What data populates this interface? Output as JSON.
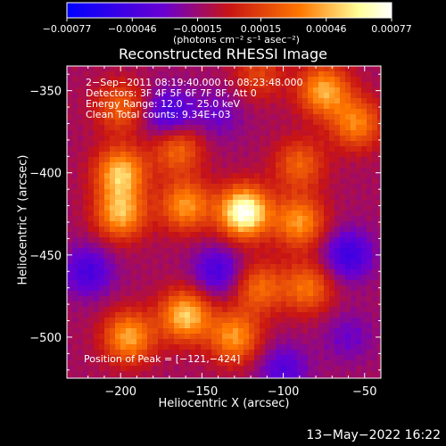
{
  "chart_data": {
    "type": "heatmap",
    "title": "Reconstructed RHESSI Image",
    "xlabel": "Heliocentric X (arcsec)",
    "ylabel": "Heliocentric Y (arcsec)",
    "xlim": [
      -233,
      -40
    ],
    "ylim": [
      -525,
      -335
    ],
    "xticks": [
      -200,
      -150,
      -100,
      -50
    ],
    "yticks": [
      -350,
      -400,
      -450,
      -500
    ],
    "xtick_labels": [
      "−200",
      "−150",
      "−100",
      "−50"
    ],
    "ytick_labels": [
      "−350",
      "−400",
      "−450",
      "−500"
    ],
    "colorbar": {
      "range": [
        -0.00077,
        0.00077
      ],
      "ticks": [
        -0.00077,
        -0.00046,
        -0.00015,
        0.00015,
        0.00046,
        0.00077
      ],
      "tick_labels": [
        "−0.00077",
        "−0.00046",
        "−0.00015",
        "0.00015",
        "0.00046",
        "0.00077"
      ],
      "units": "(photons cm⁻² s⁻¹ asec⁻²)",
      "colors": [
        "#0000ff",
        "#6a00d0",
        "#c81414",
        "#ff7800",
        "#ffff9a",
        "#ffffff"
      ]
    },
    "sources": [
      {
        "x": -124,
        "y": -424,
        "value": 0.00077
      },
      {
        "x": -200,
        "y": -400,
        "value": 0.0005
      },
      {
        "x": -200,
        "y": -425,
        "value": 0.00046
      },
      {
        "x": -160,
        "y": -420,
        "value": 0.0004
      },
      {
        "x": -165,
        "y": -385,
        "value": 0.0003
      },
      {
        "x": -195,
        "y": -500,
        "value": 0.00044
      },
      {
        "x": -160,
        "y": -487,
        "value": 0.00052
      },
      {
        "x": -130,
        "y": -500,
        "value": 0.0004
      },
      {
        "x": -115,
        "y": -470,
        "value": 0.00028
      },
      {
        "x": -200,
        "y": -360,
        "value": 0.00025
      },
      {
        "x": -75,
        "y": -350,
        "value": 0.00045
      },
      {
        "x": -55,
        "y": -370,
        "value": 0.00035
      },
      {
        "x": -90,
        "y": -395,
        "value": 0.00025
      },
      {
        "x": -90,
        "y": -430,
        "value": 0.0004
      },
      {
        "x": -85,
        "y": -470,
        "value": 0.0003
      },
      {
        "x": -115,
        "y": -340,
        "value": 0.00015
      },
      {
        "x": -170,
        "y": -365,
        "value": -0.0005
      },
      {
        "x": -140,
        "y": -460,
        "value": -0.00045
      },
      {
        "x": -60,
        "y": -450,
        "value": -0.0005
      },
      {
        "x": -100,
        "y": -520,
        "value": -0.0004
      },
      {
        "x": -220,
        "y": -460,
        "value": -0.00045
      },
      {
        "x": -60,
        "y": -500,
        "value": -0.0003
      },
      {
        "x": -140,
        "y": -365,
        "value": -0.0003
      }
    ],
    "info": {
      "time_range": "2−Sep−2011 08:19:40.000 to 08:23:48.000",
      "detectors": "Detectors: 3F 4F 5F 6F 7F 8F, Att 0",
      "energy": "Energy Range: 12.0 − 25.0 keV",
      "algorithm": "Clean    Total counts: 9.34E+03"
    },
    "peak": "Position of Peak = [−121,−424]"
  },
  "footer_date": "13−May−2022 16:22"
}
